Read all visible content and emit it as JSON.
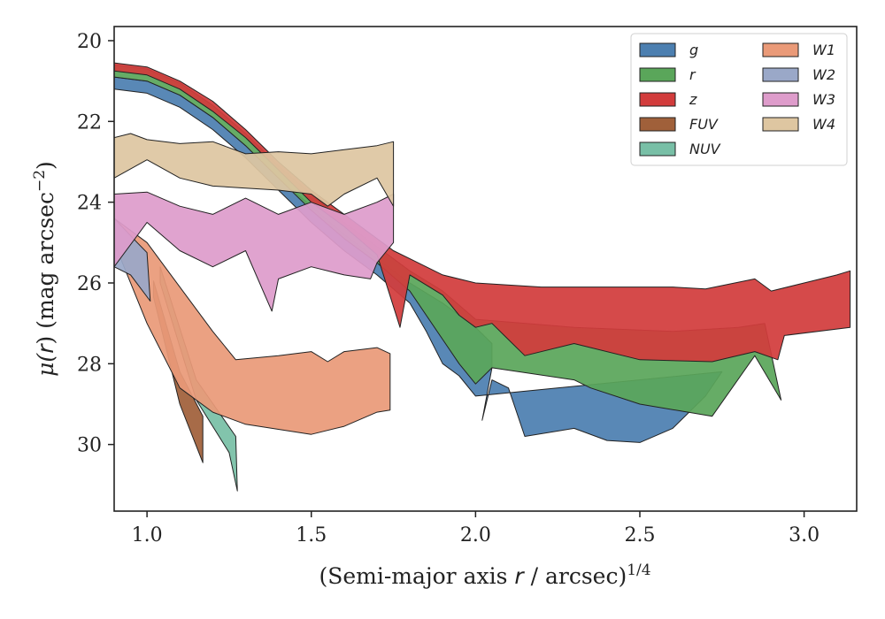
{
  "chart_data": {
    "type": "area",
    "title": "",
    "xlabel": {
      "pre": "(Semi-major axis ",
      "var": "r",
      "post": " / arcsec)",
      "sup": "1/4"
    },
    "ylabel": {
      "pre": "μ(",
      "var": "r",
      "post": ") (mag arcsec",
      "sup": "−2",
      "end": ")"
    },
    "xlim": [
      0.9,
      3.16
    ],
    "ylim": [
      31.65,
      19.65
    ],
    "y_inverted": true,
    "xticks": [
      "1.0",
      "1.5",
      "2.0",
      "2.5",
      "3.0"
    ],
    "yticks": [
      "20",
      "22",
      "24",
      "26",
      "28",
      "30"
    ],
    "grid": false,
    "legend_position": "top-right",
    "series": [
      {
        "name": "g",
        "color": "#4c7fb0",
        "upper": [
          [
            0.9,
            20.9
          ],
          [
            1.0,
            21.0
          ],
          [
            1.1,
            21.35
          ],
          [
            1.2,
            21.9
          ],
          [
            1.3,
            22.6
          ],
          [
            1.4,
            23.4
          ],
          [
            1.5,
            24.1
          ],
          [
            1.6,
            24.8
          ],
          [
            1.7,
            25.4
          ],
          [
            1.8,
            26.0
          ],
          [
            1.9,
            26.5
          ],
          [
            2.0,
            27.1
          ],
          [
            2.05,
            27.5
          ]
        ],
        "lower": [
          [
            2.05,
            28.1
          ],
          [
            2.02,
            29.4
          ],
          [
            2.05,
            28.4
          ],
          [
            2.1,
            28.6
          ],
          [
            2.15,
            29.8
          ],
          [
            2.3,
            29.6
          ],
          [
            2.4,
            29.9
          ],
          [
            2.5,
            29.95
          ],
          [
            2.6,
            29.6
          ],
          [
            2.7,
            28.8
          ],
          [
            2.75,
            28.2
          ],
          [
            2.0,
            28.8
          ],
          [
            1.95,
            28.3
          ],
          [
            1.9,
            28.0
          ],
          [
            1.85,
            27.2
          ],
          [
            1.8,
            26.5
          ],
          [
            1.7,
            25.8
          ],
          [
            1.6,
            25.2
          ],
          [
            1.5,
            24.5
          ],
          [
            1.4,
            23.7
          ],
          [
            1.3,
            22.9
          ],
          [
            1.2,
            22.2
          ],
          [
            1.1,
            21.65
          ],
          [
            1.0,
            21.3
          ],
          [
            0.9,
            21.2
          ]
        ]
      },
      {
        "name": "r",
        "color": "#5aa65a",
        "upper": [
          [
            0.9,
            20.6
          ],
          [
            1.0,
            20.7
          ],
          [
            1.1,
            21.05
          ],
          [
            1.2,
            21.6
          ],
          [
            1.3,
            22.3
          ],
          [
            1.4,
            23.1
          ],
          [
            1.5,
            23.8
          ],
          [
            1.6,
            24.5
          ],
          [
            1.7,
            25.1
          ],
          [
            1.8,
            25.7
          ],
          [
            1.9,
            26.2
          ],
          [
            2.0,
            26.9
          ],
          [
            2.3,
            27.1
          ],
          [
            2.6,
            27.2
          ],
          [
            2.8,
            27.1
          ],
          [
            2.88,
            27.0
          ]
        ],
        "lower": [
          [
            2.93,
            28.9
          ],
          [
            2.85,
            27.8
          ],
          [
            2.72,
            29.3
          ],
          [
            2.5,
            29.0
          ],
          [
            2.35,
            28.6
          ],
          [
            2.3,
            28.4
          ],
          [
            2.05,
            28.1
          ],
          [
            2.0,
            28.5
          ],
          [
            1.95,
            28.0
          ],
          [
            1.9,
            27.4
          ],
          [
            1.8,
            26.2
          ],
          [
            1.7,
            25.5
          ],
          [
            1.6,
            24.9
          ],
          [
            1.5,
            24.2
          ],
          [
            1.4,
            23.4
          ],
          [
            1.3,
            22.6
          ],
          [
            1.2,
            21.9
          ],
          [
            1.1,
            21.35
          ],
          [
            1.0,
            21.0
          ],
          [
            0.9,
            20.9
          ]
        ]
      },
      {
        "name": "z",
        "color": "#d23c3c",
        "upper": [
          [
            0.9,
            20.55
          ],
          [
            1.0,
            20.65
          ],
          [
            1.1,
            21.0
          ],
          [
            1.2,
            21.5
          ],
          [
            1.3,
            22.2
          ],
          [
            1.4,
            23.0
          ],
          [
            1.5,
            23.7
          ],
          [
            1.6,
            24.3
          ],
          [
            1.7,
            24.9
          ],
          [
            1.75,
            25.2
          ],
          [
            1.8,
            25.4
          ],
          [
            1.9,
            25.8
          ],
          [
            2.0,
            26.0
          ],
          [
            2.2,
            26.1
          ],
          [
            2.4,
            26.1
          ],
          [
            2.6,
            26.1
          ],
          [
            2.7,
            26.15
          ],
          [
            2.85,
            25.9
          ],
          [
            2.9,
            26.2
          ],
          [
            3.0,
            26.0
          ],
          [
            3.1,
            25.8
          ],
          [
            3.14,
            25.7
          ]
        ],
        "lower": [
          [
            3.14,
            27.1
          ],
          [
            2.94,
            27.3
          ],
          [
            2.92,
            27.9
          ],
          [
            2.85,
            27.7
          ],
          [
            2.72,
            27.95
          ],
          [
            2.5,
            27.9
          ],
          [
            2.3,
            27.5
          ],
          [
            2.15,
            27.8
          ],
          [
            2.05,
            27.0
          ],
          [
            2.0,
            27.1
          ],
          [
            1.95,
            26.8
          ],
          [
            1.9,
            26.3
          ],
          [
            1.8,
            25.8
          ],
          [
            1.77,
            27.1
          ],
          [
            1.7,
            25.3
          ],
          [
            1.6,
            24.6
          ],
          [
            1.5,
            24.0
          ],
          [
            1.4,
            23.2
          ],
          [
            1.3,
            22.4
          ],
          [
            1.2,
            21.75
          ],
          [
            1.1,
            21.2
          ],
          [
            1.0,
            20.85
          ],
          [
            0.9,
            20.75
          ]
        ]
      },
      {
        "name": "FUV",
        "color": "#a0603a",
        "upper": [
          [
            1.02,
            25.95
          ],
          [
            1.1,
            28.2
          ],
          [
            1.17,
            29.3
          ]
        ],
        "lower": [
          [
            1.17,
            30.45
          ],
          [
            1.1,
            29.0
          ],
          [
            1.02,
            26.35
          ]
        ]
      },
      {
        "name": "NUV",
        "color": "#78bfa6",
        "upper": [
          [
            1.04,
            25.6
          ],
          [
            1.15,
            28.4
          ],
          [
            1.27,
            29.8
          ]
        ],
        "lower": [
          [
            1.275,
            31.15
          ],
          [
            1.25,
            30.2
          ],
          [
            1.15,
            28.9
          ],
          [
            1.04,
            26.0
          ]
        ]
      },
      {
        "name": "W1",
        "color": "#ea9a78",
        "upper": [
          [
            0.9,
            24.4
          ],
          [
            1.0,
            25.0
          ],
          [
            1.1,
            26.1
          ],
          [
            1.2,
            27.2
          ],
          [
            1.27,
            27.9
          ],
          [
            1.4,
            27.8
          ],
          [
            1.5,
            27.7
          ],
          [
            1.55,
            27.95
          ],
          [
            1.6,
            27.7
          ],
          [
            1.7,
            27.6
          ],
          [
            1.74,
            27.75
          ]
        ],
        "lower": [
          [
            1.74,
            29.15
          ],
          [
            1.7,
            29.2
          ],
          [
            1.6,
            29.55
          ],
          [
            1.5,
            29.75
          ],
          [
            1.3,
            29.5
          ],
          [
            1.2,
            29.2
          ],
          [
            1.1,
            28.6
          ],
          [
            1.0,
            27.0
          ],
          [
            0.9,
            25.0
          ]
        ]
      },
      {
        "name": "W2",
        "color": "#9aa8c8",
        "upper": [
          [
            0.9,
            24.4
          ],
          [
            0.97,
            25.0
          ],
          [
            1.0,
            25.25
          ]
        ],
        "lower": [
          [
            1.01,
            26.45
          ],
          [
            0.95,
            25.8
          ],
          [
            0.9,
            25.6
          ]
        ]
      },
      {
        "name": "W3",
        "color": "#de9ccb",
        "upper": [
          [
            0.9,
            23.8
          ],
          [
            1.0,
            23.75
          ],
          [
            1.1,
            24.1
          ],
          [
            1.2,
            24.3
          ],
          [
            1.3,
            23.9
          ],
          [
            1.4,
            24.3
          ],
          [
            1.5,
            24.0
          ],
          [
            1.6,
            24.3
          ],
          [
            1.7,
            24.0
          ],
          [
            1.75,
            23.8
          ]
        ],
        "lower": [
          [
            1.75,
            25.0
          ],
          [
            1.7,
            25.5
          ],
          [
            1.68,
            25.9
          ],
          [
            1.6,
            25.8
          ],
          [
            1.5,
            25.6
          ],
          [
            1.4,
            25.9
          ],
          [
            1.38,
            26.7
          ],
          [
            1.3,
            25.2
          ],
          [
            1.2,
            25.6
          ],
          [
            1.1,
            25.2
          ],
          [
            1.0,
            24.5
          ],
          [
            0.9,
            25.6
          ]
        ]
      },
      {
        "name": "W4",
        "color": "#dec6a1",
        "upper": [
          [
            0.9,
            22.4
          ],
          [
            0.95,
            22.3
          ],
          [
            1.0,
            22.45
          ],
          [
            1.1,
            22.55
          ],
          [
            1.2,
            22.5
          ],
          [
            1.3,
            22.8
          ],
          [
            1.4,
            22.75
          ],
          [
            1.5,
            22.8
          ],
          [
            1.6,
            22.7
          ],
          [
            1.7,
            22.6
          ],
          [
            1.75,
            22.5
          ]
        ],
        "lower": [
          [
            1.75,
            24.1
          ],
          [
            1.7,
            23.4
          ],
          [
            1.6,
            23.8
          ],
          [
            1.55,
            24.1
          ],
          [
            1.5,
            23.8
          ],
          [
            1.4,
            23.7
          ],
          [
            1.3,
            23.65
          ],
          [
            1.2,
            23.6
          ],
          [
            1.1,
            23.4
          ],
          [
            1.0,
            22.95
          ],
          [
            0.9,
            23.4
          ]
        ]
      }
    ]
  }
}
